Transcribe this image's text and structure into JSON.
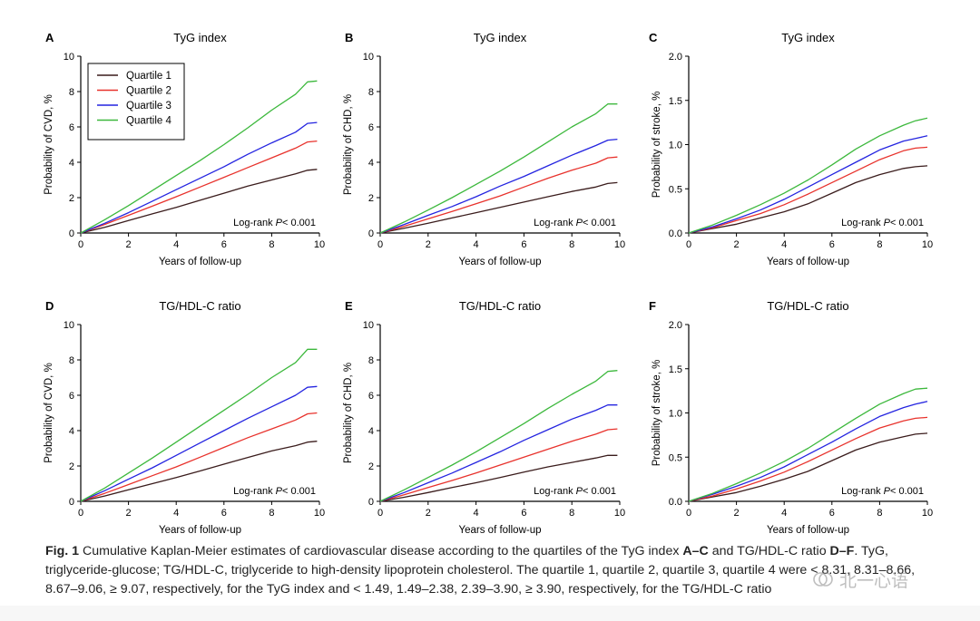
{
  "figure": {
    "caption": {
      "fig_label": "Fig. 1",
      "text_1": " Cumulative Kaplan-Meier estimates of cardiovascular disease according to the quartiles of the TyG index ",
      "panels_1": "A–C",
      "text_2": " and TG/HDL-C ratio ",
      "panels_2": "D–F",
      "text_3": ". TyG, triglyceride-glucose; TG/HDL-C, triglyceride to high-density lipoprotein cholesterol. The quartile 1, quartile 2, quartile 3, quartile 4 were < 8.31, 8.31–8.66, 8.67–9.06, ≥ 9.07, respectively, for the TyG index and < 1.49, 1.49–2.38, 2.39–3.90, ≥ 3.90, respectively, for the TG/HDL-C ratio"
    },
    "watermark": {
      "text": "北一心语",
      "icon": "heart-logo-icon"
    },
    "colors": {
      "quartile_1": "#3a1c1c",
      "quartile_2": "#e8322c",
      "quartile_3": "#2424e0",
      "quartile_4": "#3cb83c"
    }
  },
  "chart_data": [
    {
      "panel": "A",
      "type": "line",
      "title": "TyG index",
      "xlabel": "Years of follow-up",
      "ylabel": "Probability of CVD, %",
      "xlim": [
        0,
        10
      ],
      "ylim": [
        0,
        10
      ],
      "xticks": [
        "0",
        "2",
        "4",
        "6",
        "8",
        "10"
      ],
      "yticks": [
        "0",
        "2",
        "4",
        "6",
        "8",
        "10"
      ],
      "annotation": "Log-rank ",
      "annotation_p": "P",
      "annotation_tail": "< 0.001",
      "legend": {
        "position": "top-left",
        "entries": [
          "Quartile 1",
          "Quartile 2",
          "Quartile 3",
          "Quartile 4"
        ]
      },
      "x": [
        0,
        1,
        2,
        3,
        4,
        5,
        6,
        7,
        8,
        9,
        9.5,
        9.9
      ],
      "series": [
        {
          "name": "Quartile 1",
          "values": [
            0,
            0.32,
            0.7,
            1.08,
            1.45,
            1.85,
            2.25,
            2.65,
            3.0,
            3.35,
            3.55,
            3.6
          ]
        },
        {
          "name": "Quartile 2",
          "values": [
            0,
            0.48,
            1.0,
            1.52,
            2.05,
            2.6,
            3.15,
            3.7,
            4.25,
            4.8,
            5.15,
            5.2
          ]
        },
        {
          "name": "Quartile 3",
          "values": [
            0,
            0.55,
            1.15,
            1.8,
            2.45,
            3.1,
            3.75,
            4.45,
            5.1,
            5.7,
            6.2,
            6.25
          ]
        },
        {
          "name": "Quartile 4",
          "values": [
            0,
            0.75,
            1.55,
            2.4,
            3.25,
            4.1,
            5.0,
            5.95,
            6.95,
            7.85,
            8.55,
            8.6
          ]
        }
      ]
    },
    {
      "panel": "B",
      "type": "line",
      "title": "TyG index",
      "xlabel": "Years of follow-up",
      "ylabel": "Probability of CHD, %",
      "xlim": [
        0,
        10
      ],
      "ylim": [
        0,
        10
      ],
      "xticks": [
        "0",
        "2",
        "4",
        "6",
        "8",
        "10"
      ],
      "yticks": [
        "0",
        "2",
        "4",
        "6",
        "8",
        "10"
      ],
      "annotation": "Log-rank ",
      "annotation_p": "P",
      "annotation_tail": "< 0.001",
      "x": [
        0,
        1,
        2,
        3,
        4,
        5,
        6,
        7,
        8,
        9,
        9.5,
        9.9
      ],
      "series": [
        {
          "name": "Quartile 1",
          "values": [
            0,
            0.27,
            0.55,
            0.85,
            1.15,
            1.45,
            1.75,
            2.05,
            2.35,
            2.6,
            2.8,
            2.85
          ]
        },
        {
          "name": "Quartile 2",
          "values": [
            0,
            0.38,
            0.8,
            1.22,
            1.65,
            2.1,
            2.6,
            3.1,
            3.55,
            3.95,
            4.25,
            4.3
          ]
        },
        {
          "name": "Quartile 3",
          "values": [
            0,
            0.48,
            1.0,
            1.5,
            2.05,
            2.65,
            3.2,
            3.8,
            4.4,
            4.95,
            5.25,
            5.3
          ]
        },
        {
          "name": "Quartile 4",
          "values": [
            0,
            0.62,
            1.3,
            2.0,
            2.75,
            3.5,
            4.3,
            5.15,
            6.0,
            6.75,
            7.3,
            7.3
          ]
        }
      ]
    },
    {
      "panel": "C",
      "type": "line",
      "title": "TyG index",
      "xlabel": "Years of follow-up",
      "ylabel": "Probability of stroke, %",
      "xlim": [
        0,
        10
      ],
      "ylim": [
        0,
        2.0
      ],
      "xticks": [
        "0",
        "2",
        "4",
        "6",
        "8",
        "10"
      ],
      "yticks": [
        "0.0",
        "0.5",
        "1.0",
        "1.5",
        "2.0"
      ],
      "annotation": "Log-rank ",
      "annotation_p": "P",
      "annotation_tail": "< 0.001",
      "x": [
        0,
        1,
        2,
        3,
        4,
        5,
        6,
        7,
        8,
        9,
        9.5,
        10
      ],
      "series": [
        {
          "name": "Quartile 1",
          "values": [
            0,
            0.05,
            0.1,
            0.17,
            0.24,
            0.33,
            0.45,
            0.57,
            0.66,
            0.73,
            0.75,
            0.76
          ]
        },
        {
          "name": "Quartile 2",
          "values": [
            0,
            0.06,
            0.14,
            0.22,
            0.32,
            0.44,
            0.57,
            0.7,
            0.83,
            0.93,
            0.96,
            0.97
          ]
        },
        {
          "name": "Quartile 3",
          "values": [
            0,
            0.07,
            0.16,
            0.26,
            0.38,
            0.52,
            0.66,
            0.8,
            0.94,
            1.04,
            1.07,
            1.1
          ]
        },
        {
          "name": "Quartile 4",
          "values": [
            0,
            0.09,
            0.2,
            0.32,
            0.45,
            0.6,
            0.77,
            0.95,
            1.1,
            1.22,
            1.27,
            1.3
          ]
        }
      ]
    },
    {
      "panel": "D",
      "type": "line",
      "title": "TG/HDL-C ratio",
      "xlabel": "Years of follow-up",
      "ylabel": "Probability of CVD, %",
      "xlim": [
        0,
        10
      ],
      "ylim": [
        0,
        10
      ],
      "xticks": [
        "0",
        "2",
        "4",
        "6",
        "8",
        "10"
      ],
      "yticks": [
        "0",
        "2",
        "4",
        "6",
        "8",
        "10"
      ],
      "annotation": "Log-rank ",
      "annotation_p": "P",
      "annotation_tail": "< 0.001",
      "x": [
        0,
        1,
        2,
        3,
        4,
        5,
        6,
        7,
        8,
        9,
        9.5,
        9.9
      ],
      "series": [
        {
          "name": "Quartile 1",
          "values": [
            0,
            0.3,
            0.65,
            1.0,
            1.35,
            1.72,
            2.1,
            2.48,
            2.85,
            3.15,
            3.35,
            3.4
          ]
        },
        {
          "name": "Quartile 2",
          "values": [
            0,
            0.45,
            0.95,
            1.45,
            1.95,
            2.5,
            3.05,
            3.6,
            4.1,
            4.6,
            4.95,
            5.0
          ]
        },
        {
          "name": "Quartile 3",
          "values": [
            0,
            0.6,
            1.25,
            1.9,
            2.6,
            3.3,
            4.0,
            4.7,
            5.35,
            6.0,
            6.45,
            6.5
          ]
        },
        {
          "name": "Quartile 4",
          "values": [
            0,
            0.75,
            1.6,
            2.45,
            3.35,
            4.25,
            5.15,
            6.05,
            7.0,
            7.85,
            8.6,
            8.6
          ]
        }
      ]
    },
    {
      "panel": "E",
      "type": "line",
      "title": "TG/HDL-C ratio",
      "xlabel": "Years of follow-up",
      "ylabel": "Probability of CHD, %",
      "xlim": [
        0,
        10
      ],
      "ylim": [
        0,
        10
      ],
      "xticks": [
        "0",
        "2",
        "4",
        "6",
        "8",
        "10"
      ],
      "yticks": [
        "0",
        "2",
        "4",
        "6",
        "8",
        "10"
      ],
      "annotation": "Log-rank ",
      "annotation_p": "P",
      "annotation_tail": "< 0.001",
      "x": [
        0,
        1,
        2,
        3,
        4,
        5,
        6,
        7,
        8,
        9,
        9.5,
        9.9
      ],
      "series": [
        {
          "name": "Quartile 1",
          "values": [
            0,
            0.23,
            0.5,
            0.78,
            1.05,
            1.35,
            1.65,
            1.95,
            2.2,
            2.45,
            2.6,
            2.6
          ]
        },
        {
          "name": "Quartile 2",
          "values": [
            0,
            0.37,
            0.78,
            1.18,
            1.6,
            2.05,
            2.5,
            2.95,
            3.4,
            3.8,
            4.05,
            4.1
          ]
        },
        {
          "name": "Quartile 3",
          "values": [
            0,
            0.5,
            1.05,
            1.6,
            2.2,
            2.8,
            3.45,
            4.05,
            4.65,
            5.15,
            5.45,
            5.45
          ]
        },
        {
          "name": "Quartile 4",
          "values": [
            0,
            0.65,
            1.35,
            2.05,
            2.8,
            3.6,
            4.4,
            5.25,
            6.05,
            6.8,
            7.35,
            7.4
          ]
        }
      ]
    },
    {
      "panel": "F",
      "type": "line",
      "title": "TG/HDL-C ratio",
      "xlabel": "Years of follow-up",
      "ylabel": "Probability of stroke, %",
      "xlim": [
        0,
        10
      ],
      "ylim": [
        0,
        2.0
      ],
      "xticks": [
        "0",
        "2",
        "4",
        "6",
        "8",
        "10"
      ],
      "yticks": [
        "0.0",
        "0.5",
        "1.0",
        "1.5",
        "2.0"
      ],
      "annotation": "Log-rank ",
      "annotation_p": "P",
      "annotation_tail": "< 0.001",
      "x": [
        0,
        1,
        2,
        3,
        4,
        5,
        6,
        7,
        8,
        9,
        9.5,
        10
      ],
      "series": [
        {
          "name": "Quartile 1",
          "values": [
            0,
            0.05,
            0.1,
            0.17,
            0.25,
            0.34,
            0.46,
            0.58,
            0.67,
            0.73,
            0.76,
            0.77
          ]
        },
        {
          "name": "Quartile 2",
          "values": [
            0,
            0.06,
            0.14,
            0.23,
            0.33,
            0.45,
            0.58,
            0.71,
            0.83,
            0.91,
            0.94,
            0.95
          ]
        },
        {
          "name": "Quartile 3",
          "values": [
            0,
            0.08,
            0.17,
            0.27,
            0.39,
            0.53,
            0.67,
            0.82,
            0.96,
            1.06,
            1.1,
            1.13
          ]
        },
        {
          "name": "Quartile 4",
          "values": [
            0,
            0.09,
            0.2,
            0.32,
            0.45,
            0.6,
            0.77,
            0.94,
            1.1,
            1.22,
            1.27,
            1.28
          ]
        }
      ]
    }
  ]
}
